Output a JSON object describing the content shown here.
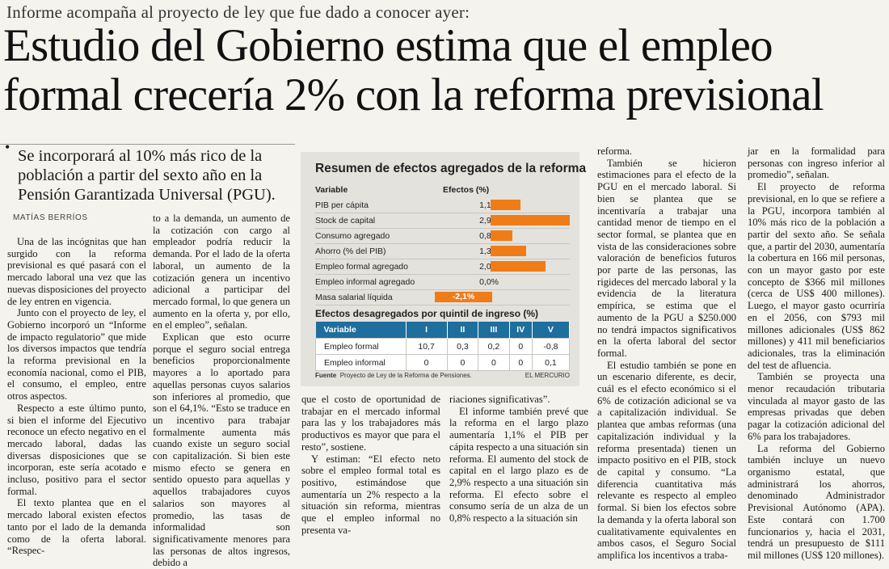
{
  "kicker": "Informe acompaña al proyecto de ley que fue dado a conocer ayer:",
  "headline_line1": "Estudio del Gobierno estima que el empleo",
  "headline_line2": "formal crecería 2% con la reforma previsional",
  "bullet": "•",
  "subheadline": "Se incorporará al 10% más rico de la población a partir del sexto año en la Pensión Garantizada Universal (PGU).",
  "byline": "MATÍAS BERRÍOS",
  "col1": [
    "Una de las incógnitas que han surgido con la reforma previsional es qué pasará con el mercado laboral una vez que las nuevas disposiciones del proyecto de ley entren en vigencia.",
    "Junto con el proyecto de ley, el Gobierno incorporó un “Informe de impacto regulatorio” que mide los diversos impactos que tendría la reforma previsional en la economía nacional, como el PIB, el consumo, el empleo, entre otros aspectos.",
    "Respecto a este último punto, si bien el informe del Ejecutivo reconoce un efecto negativo en el mercado laboral, dadas las diversas disposiciones que se incorporan, este sería acotado e incluso, positivo para el sector formal.",
    "El texto plantea que en el mercado laboral existen efectos tanto por el lado de la demanda como de la oferta laboral. “Respec-"
  ],
  "col2": [
    "to a la demanda, un aumento de la cotización con cargo al empleador podría reducir la demanda. Por el lado de la oferta laboral, un aumento de la cotización genera un incentivo adicional a participar del mercado formal, lo que genera un aumento en la oferta y, por ello, en el empleo”, señalan.",
    "Explican que esto ocurre porque el seguro social entrega beneficios proporcionalmente mayores a lo aportado para aquellas personas cuyos salarios son inferiores al promedio, que son el 64,1%. “Esto se traduce en un incentivo para trabajar formalmente aumenta más cuando existe un seguro social con capitalización. Si bien este mismo efecto se genera en sentido opuesto para aquellas y aquellos trabajadores cuyos salarios son mayores al promedio, las tasas de informalidad son significativamente menores para las personas de altos ingresos, debido a"
  ],
  "col3": [
    "que el costo de oportunidad de trabajar en el mercado informal para las y los trabajadores más productivos es mayor que para el resto”, sostiene.",
    "Y estiman: “El efecto neto sobre el empleo formal total es positivo, estimándose que aumentaría un 2% respecto a la situación sin reforma, mientras que el empleo informal no presenta va-"
  ],
  "col4": [
    "riaciones significativas”.",
    "El informe también prevé que la reforma en el largo plazo aumentaría 1,1% el PIB per cápita respecto a una situación sin reforma. El aumento del stock de capital en el largo plazo es de 2,9% respecto a una situación sin reforma. El efecto sobre el consumo sería de un alza de un 0,8% respecto a la situación sin"
  ],
  "col5": [
    "reforma.",
    "También se hicieron estimaciones para el efecto de la PGU en el mercado laboral. Si bien se plantea que se incentivaría a trabajar una cantidad menor de tiempo en el sector formal, se plantea que en vista de las consideraciones sobre valoración de beneficios futuros por parte de las personas, las rigideces del mercado laboral y la evidencia de la literatura empírica, se estima que el aumento de la PGU a $250.000 no tendrá impactos significativos en la oferta laboral del sector formal.",
    "El estudio también se pone en un escenario diferente, es decir, cuál es el efecto económico si el 6% de cotización adicional se va a capitalización individual. Se plantea que ambas reformas (una capitalización individual y la reforma presentada) tienen un impacto positivo en el PIB, stock de capital y consumo. “La diferencia cuantitativa más relevante es respecto al empleo formal. Si bien los efectos sobre la demanda y la oferta laboral son cualitativamente equivalentes en ambos casos, el Seguro Social amplifica los incentivos a traba-"
  ],
  "col6": [
    "jar en la formalidad para personas con ingreso inferior al promedio”, señalan.",
    "El proyecto de reforma previsional, en lo que se refiere a la PGU, incorpora también al 10% más rico de la población a partir del sexto año. Se señala que, a partir del 2030, aumentaría la cobertura en 166 mil personas, con un mayor gasto por este concepto de $366 mil millones (cerca de US$ 400 millones). Luego, el mayor gasto ocurriría en el 2056, con $793 mil millones adicionales (US$ 862 millones) y 411 mil beneficiarios adicionales, tras la eliminación del test de afluencia.",
    "También se proyecta una menor recaudación tributaria vinculada al mayor gasto de las empresas privadas que deben pagar la cotización adicional del 6% para los trabajadores.",
    "La reforma del Gobierno también incluye un nuevo organismo estatal, que administrará los ahorros, denominado Administrador Previsional Autónomo (APA). Este contará con 1.700 funcionarios y, hacia el 2031, tendrá un presupuesto de $111 mil millones (US$ 120 millones)."
  ],
  "infobox": {
    "title": "Resumen de efectos agregados de la reforma",
    "col_variable": "Variable",
    "col_efectos": "Efectos (%)",
    "subtitle": "Efectos desagregados por quintil de ingreso (%)",
    "quintile_headers": [
      "Variable",
      "I",
      "II",
      "III",
      "IV",
      "V"
    ],
    "quintile_rows": [
      [
        "Empleo formal",
        "10,7",
        "0,3",
        "0,2",
        "0",
        "-0,8"
      ],
      [
        "Empleo informal",
        "0",
        "0",
        "0",
        "0",
        "0,1"
      ]
    ],
    "source_label": "Fuente",
    "source_text": "Proyecto de Ley de la Reforma de Pensiones.",
    "publisher": "EL MERCURIO",
    "bar_color": "#f07c18",
    "header_color": "#1e6e9e"
  },
  "chart_data": {
    "type": "bar",
    "orientation": "horizontal",
    "title": "Resumen de efectos agregados de la reforma",
    "categories": [
      "PIB per cápita",
      "Stock de capital",
      "Consumo agregado",
      "Ahorro (% del PIB)",
      "Empleo formal agregado",
      "Empleo informal agregado",
      "Masa salarial líquida"
    ],
    "value_labels": [
      "1,1%",
      "2,9%",
      "0,8%",
      "1,3%",
      "2,0%",
      "0,0%",
      "-2,1%"
    ],
    "values": [
      1.1,
      2.9,
      0.8,
      1.3,
      2.0,
      0.0,
      -2.1
    ],
    "xlim": [
      0,
      2.9
    ],
    "grid": false
  }
}
